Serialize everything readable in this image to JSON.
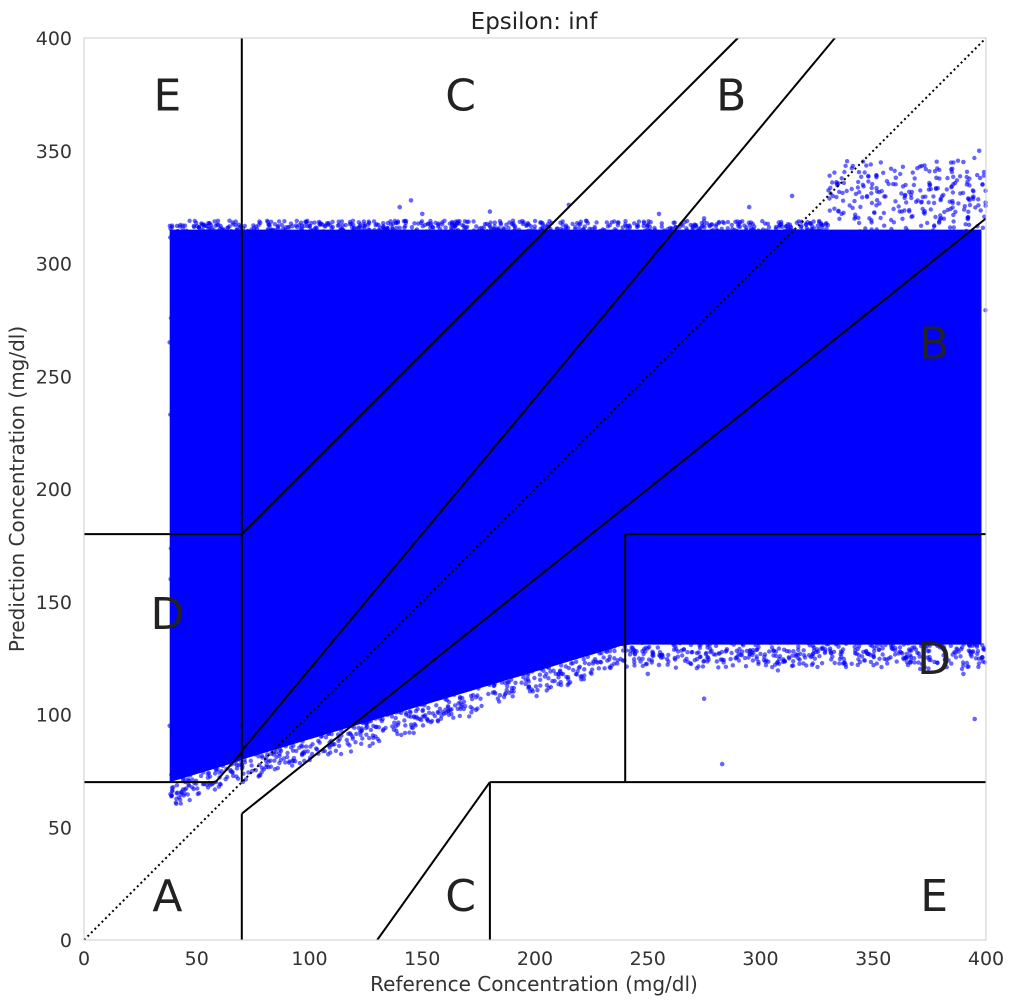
{
  "chart_data": {
    "type": "scatter",
    "title": "Epsilon: inf",
    "xlabel": "Reference Concentration (mg/dl)",
    "ylabel": "Prediction Concentration (mg/dl)",
    "xlim": [
      0,
      400
    ],
    "ylim": [
      0,
      400
    ],
    "xticks": [
      0,
      50,
      100,
      150,
      200,
      250,
      300,
      350,
      400
    ],
    "yticks": [
      0,
      50,
      100,
      150,
      200,
      250,
      300,
      350,
      400
    ],
    "grid": false,
    "point_color": "#0000ff",
    "line_color": "#000000",
    "zone_labels": [
      {
        "text": "A",
        "x": 37,
        "y": 20
      },
      {
        "text": "B",
        "x": 287,
        "y": 375
      },
      {
        "text": "B",
        "x": 377,
        "y": 265
      },
      {
        "text": "C",
        "x": 167,
        "y": 375
      },
      {
        "text": "C",
        "x": 167,
        "y": 20
      },
      {
        "text": "D",
        "x": 37,
        "y": 145
      },
      {
        "text": "D",
        "x": 377,
        "y": 125
      },
      {
        "text": "E",
        "x": 37,
        "y": 375
      },
      {
        "text": "E",
        "x": 377,
        "y": 20
      }
    ],
    "zone_lines": [
      {
        "name": "identity",
        "style": "dotted",
        "points": [
          [
            0,
            0
          ],
          [
            400,
            400
          ]
        ]
      },
      {
        "name": "a-upper-low",
        "points": [
          [
            0,
            70
          ],
          [
            58.33,
            70
          ]
        ]
      },
      {
        "name": "a-upper-diag",
        "points": [
          [
            58.33,
            70
          ],
          [
            70,
            83.3
          ]
        ]
      },
      {
        "name": "b-upper-diag",
        "points": [
          [
            70,
            84
          ],
          [
            333,
            400
          ]
        ]
      },
      {
        "name": "c-upper-diag",
        "points": [
          [
            70,
            180
          ],
          [
            290,
            400
          ]
        ]
      },
      {
        "name": "e-vertical",
        "points": [
          [
            70,
            180
          ],
          [
            70,
            400
          ]
        ]
      },
      {
        "name": "d-left-horizontal",
        "points": [
          [
            0,
            180
          ],
          [
            70,
            180
          ]
        ]
      },
      {
        "name": "d-left-vertical",
        "points": [
          [
            70,
            70
          ],
          [
            70,
            180
          ]
        ]
      },
      {
        "name": "a-lower-vertical",
        "points": [
          [
            70,
            0
          ],
          [
            70,
            56
          ]
        ]
      },
      {
        "name": "a-lower-diag",
        "points": [
          [
            70,
            56
          ],
          [
            400,
            320
          ]
        ]
      },
      {
        "name": "c-lower-diag",
        "points": [
          [
            130,
            0
          ],
          [
            180,
            70
          ]
        ]
      },
      {
        "name": "e-lower-vertical",
        "points": [
          [
            180,
            0
          ],
          [
            180,
            70
          ]
        ]
      },
      {
        "name": "e-lower-horizontal",
        "points": [
          [
            180,
            70
          ],
          [
            400,
            70
          ]
        ]
      },
      {
        "name": "d-right-vertical",
        "points": [
          [
            240,
            70
          ],
          [
            240,
            180
          ]
        ]
      },
      {
        "name": "d-right-horizontal",
        "points": [
          [
            240,
            180
          ],
          [
            400,
            180
          ]
        ]
      }
    ],
    "point_cloud": {
      "description_bounds": "dense cloud of predictions",
      "x_range": [
        38,
        400
      ],
      "y_floor_range": [
        70,
        135
      ],
      "y_cap": 315,
      "sparse_points": [
        [
          145,
          328
        ],
        [
          150,
          322
        ],
        [
          140,
          325
        ],
        [
          180,
          323
        ],
        [
          215,
          326
        ],
        [
          255,
          322
        ],
        [
          275,
          320
        ],
        [
          314,
          330
        ],
        [
          295,
          325
        ],
        [
          390,
          345
        ],
        [
          385,
          342
        ],
        [
          360,
          338
        ],
        [
          378,
          338
        ],
        [
          397,
          350
        ],
        [
          283,
          78
        ],
        [
          275,
          107
        ],
        [
          395,
          98
        ],
        [
          390,
          118
        ],
        [
          255,
          122
        ],
        [
          262,
          125
        ],
        [
          245,
          128
        ],
        [
          250,
          118
        ],
        [
          190,
          128
        ],
        [
          200,
          125
        ],
        [
          205,
          132
        ],
        [
          130,
          112
        ],
        [
          127,
          103
        ],
        [
          140,
          110
        ],
        [
          150,
          120
        ],
        [
          160,
          125
        ],
        [
          45,
          75
        ],
        [
          40,
          80
        ],
        [
          48,
          78
        ],
        [
          55,
          72
        ],
        [
          38,
          95
        ],
        [
          40,
          110
        ],
        [
          42,
          280
        ],
        [
          40,
          270
        ],
        [
          45,
          285
        ],
        [
          48,
          290
        ],
        [
          38,
          265
        ],
        [
          50,
          300
        ],
        [
          52,
          305
        ]
      ]
    }
  }
}
